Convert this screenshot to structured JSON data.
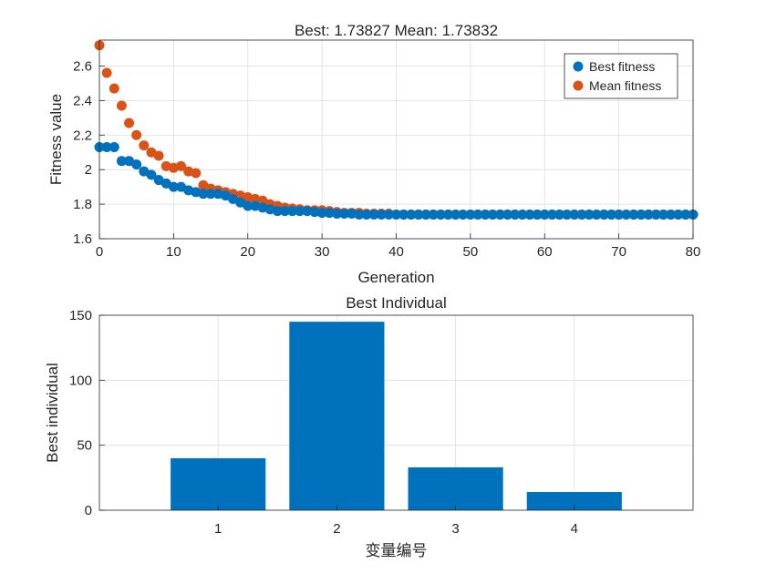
{
  "colors": {
    "best": "#0072BD",
    "mean": "#D95319",
    "bar": "#0072BD",
    "grid": "#dfdfdf",
    "axis": "#262626"
  },
  "chart_data": [
    {
      "type": "scatter",
      "title": "Best: 1.73827 Mean: 1.73832",
      "xlabel": "Generation",
      "ylabel": "Fitness value",
      "xlim": [
        0,
        80
      ],
      "ylim": [
        1.6,
        2.75
      ],
      "xticks": [
        0,
        10,
        20,
        30,
        40,
        50,
        60,
        70,
        80
      ],
      "yticks": [
        1.6,
        1.8,
        2.0,
        2.2,
        2.4,
        2.6
      ],
      "ytick_labels": [
        "1.6",
        "1.8",
        "2",
        "2.2",
        "2.4",
        "2.6"
      ],
      "grid": true,
      "legend_position": "top-right",
      "series": [
        {
          "name": "Best fitness",
          "color": "#0072BD",
          "x": [
            0,
            1,
            2,
            3,
            4,
            5,
            6,
            7,
            8,
            9,
            10,
            11,
            12,
            13,
            14,
            15,
            16,
            17,
            18,
            19,
            20,
            21,
            22,
            23,
            24,
            25,
            26,
            27,
            28,
            29,
            30,
            31,
            32,
            33,
            34,
            35,
            36,
            37,
            38,
            39,
            40,
            41,
            42,
            43,
            44,
            45,
            46,
            47,
            48,
            49,
            50,
            51,
            52,
            53,
            54,
            55,
            56,
            57,
            58,
            59,
            60,
            61,
            62,
            63,
            64,
            65,
            66,
            67,
            68,
            69,
            70,
            71,
            72,
            73,
            74,
            75,
            76,
            77,
            78,
            79,
            80
          ],
          "y": [
            2.13,
            2.13,
            2.13,
            2.05,
            2.05,
            2.03,
            1.99,
            1.97,
            1.94,
            1.92,
            1.9,
            1.9,
            1.88,
            1.87,
            1.86,
            1.86,
            1.86,
            1.85,
            1.83,
            1.81,
            1.79,
            1.79,
            1.78,
            1.77,
            1.76,
            1.76,
            1.76,
            1.76,
            1.76,
            1.755,
            1.75,
            1.75,
            1.745,
            1.745,
            1.745,
            1.74,
            1.74,
            1.74,
            1.74,
            1.74,
            1.74,
            1.74,
            1.74,
            1.74,
            1.74,
            1.74,
            1.74,
            1.74,
            1.74,
            1.74,
            1.74,
            1.74,
            1.74,
            1.74,
            1.74,
            1.74,
            1.74,
            1.74,
            1.74,
            1.74,
            1.74,
            1.74,
            1.74,
            1.74,
            1.74,
            1.74,
            1.74,
            1.74,
            1.74,
            1.74,
            1.74,
            1.74,
            1.74,
            1.74,
            1.74,
            1.74,
            1.74,
            1.74,
            1.74,
            1.74,
            1.74
          ]
        },
        {
          "name": "Mean fitness",
          "color": "#D95319",
          "x": [
            0,
            1,
            2,
            3,
            4,
            5,
            6,
            7,
            8,
            9,
            10,
            11,
            12,
            13,
            14,
            15,
            16,
            17,
            18,
            19,
            20,
            21,
            22,
            23,
            24,
            25,
            26,
            27,
            28,
            29,
            30,
            31,
            32,
            33,
            34,
            35,
            36,
            37,
            38,
            39,
            40,
            41,
            42,
            43,
            44,
            45,
            46,
            47,
            48,
            49,
            50,
            51,
            52,
            53,
            54,
            55,
            56,
            57,
            58,
            59,
            60,
            61,
            62,
            63,
            64,
            65,
            66,
            67,
            68,
            69,
            70,
            71,
            72,
            73,
            74,
            75,
            76,
            77,
            78,
            79,
            80
          ],
          "y": [
            2.72,
            2.56,
            2.47,
            2.37,
            2.27,
            2.2,
            2.14,
            2.1,
            2.08,
            2.02,
            2.01,
            2.02,
            1.99,
            1.98,
            1.91,
            1.89,
            1.88,
            1.87,
            1.86,
            1.85,
            1.84,
            1.83,
            1.82,
            1.8,
            1.79,
            1.78,
            1.775,
            1.77,
            1.765,
            1.765,
            1.765,
            1.76,
            1.755,
            1.75,
            1.75,
            1.75,
            1.745,
            1.745,
            1.745,
            1.745,
            1.74,
            1.74,
            1.74,
            1.74,
            1.74,
            1.74,
            1.74,
            1.74,
            1.74,
            1.74,
            1.74,
            1.74,
            1.74,
            1.74,
            1.74,
            1.74,
            1.74,
            1.74,
            1.74,
            1.74,
            1.74,
            1.74,
            1.74,
            1.74,
            1.74,
            1.74,
            1.74,
            1.74,
            1.74,
            1.74,
            1.74,
            1.74,
            1.74,
            1.74,
            1.74,
            1.74,
            1.74,
            1.74,
            1.74,
            1.74,
            1.74
          ]
        }
      ]
    },
    {
      "type": "bar",
      "title": "Best Individual",
      "xlabel": "变量编号",
      "ylabel": "Best individual",
      "categories": [
        "1",
        "2",
        "3",
        "4"
      ],
      "values": [
        40,
        145,
        33,
        14
      ],
      "xlim": [
        0,
        5
      ],
      "ylim": [
        0,
        150
      ],
      "yticks": [
        0,
        50,
        100,
        150
      ],
      "grid": true,
      "color": "#0072BD"
    }
  ]
}
